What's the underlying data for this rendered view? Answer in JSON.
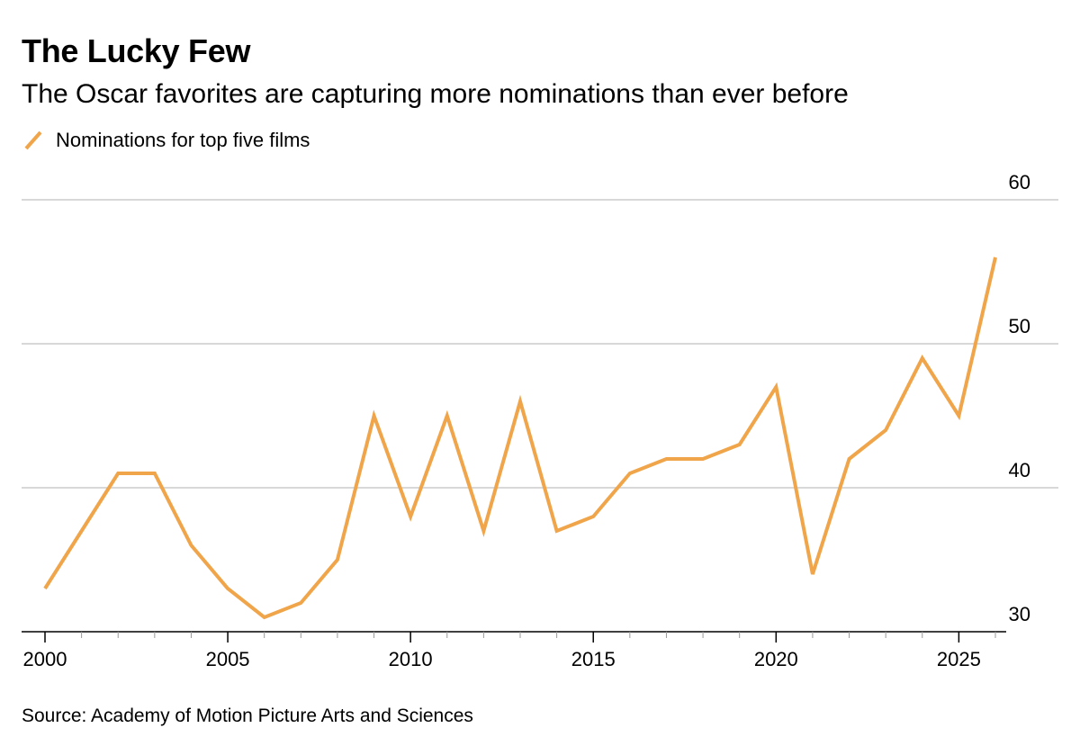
{
  "title": "The Lucky Few",
  "subtitle": "The Oscar favorites are capturing more nominations than ever before",
  "legend": {
    "label": "Nominations for top five films",
    "icon": "diagonal-line-icon"
  },
  "source": "Source: Academy of Motion Picture Arts and Sciences",
  "colors": {
    "series": "#F0A54A",
    "grid": "#cccccc",
    "axis": "#000000",
    "text": "#000000"
  },
  "chart_data": {
    "type": "line",
    "title": "The Lucky Few",
    "subtitle": "The Oscar favorites are capturing more nominations than ever before",
    "xlabel": "",
    "ylabel": "",
    "xlim": [
      2000,
      2026
    ],
    "ylim": [
      30,
      60
    ],
    "x_ticks": [
      2000,
      2005,
      2010,
      2015,
      2020,
      2025
    ],
    "y_ticks": [
      30,
      40,
      50,
      60
    ],
    "y_axis_side": "right",
    "grid": true,
    "legend_position": "top-left",
    "series": [
      {
        "name": "Nominations for top five films",
        "x": [
          2000,
          2001,
          2002,
          2003,
          2004,
          2005,
          2006,
          2007,
          2008,
          2009,
          2010,
          2011,
          2012,
          2013,
          2014,
          2015,
          2016,
          2017,
          2018,
          2019,
          2020,
          2021,
          2022,
          2023,
          2024,
          2025,
          2026
        ],
        "values": [
          33,
          37,
          41,
          41,
          36,
          33,
          31,
          32,
          35,
          45,
          38,
          45,
          37,
          46,
          37,
          38,
          41,
          42,
          42,
          43,
          47,
          34,
          42,
          44,
          49,
          45,
          56
        ]
      }
    ]
  }
}
